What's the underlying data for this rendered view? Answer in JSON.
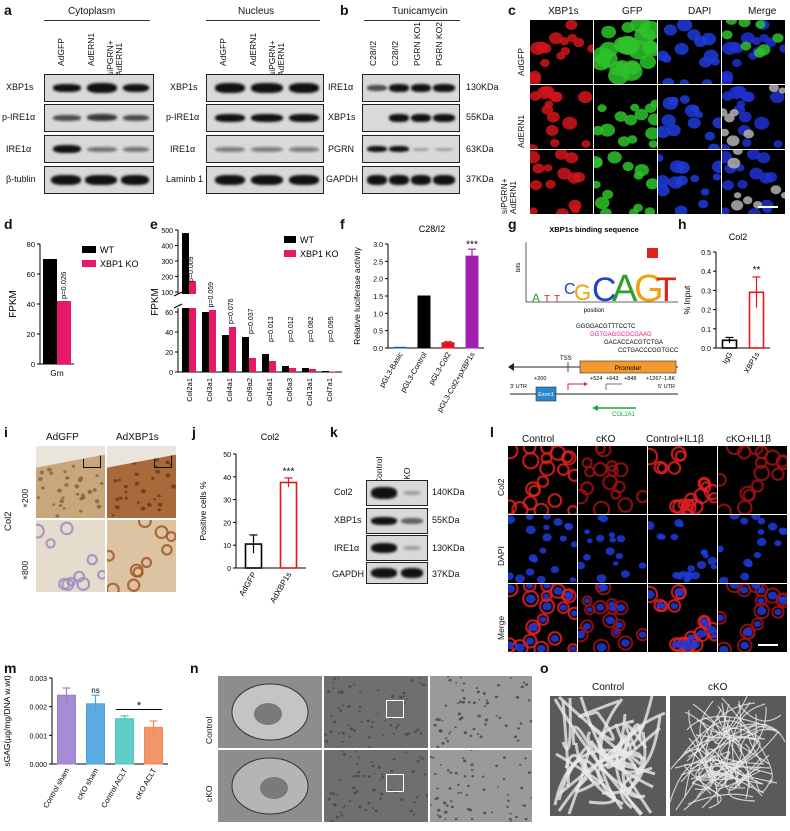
{
  "panels": {
    "a": {
      "letter": "a",
      "cytoplasm_title": "Cytoplasm",
      "nucleus_title": "Nucleus",
      "columns": [
        "AdGFP",
        "AdERN1",
        "siPGRN+ AdERN1"
      ],
      "cyto_rows": [
        "XBP1s",
        "p-IRE1α",
        "IRE1α",
        "β-tublin"
      ],
      "nuc_rows": [
        "XBP1s",
        "p-IRE1α",
        "IRE1α",
        "Laminb 1"
      ]
    },
    "b": {
      "letter": "b",
      "title": "Tunicamycin",
      "columns": [
        "C28/I2",
        "C28/I2",
        "PGRN KO1",
        "PGRN KO2"
      ],
      "rows": [
        "IRE1α",
        "XBP1s",
        "PGRN",
        "GAPDH"
      ],
      "sizes": [
        "130KDa",
        "55KDa",
        "63KDa",
        "37KDa"
      ]
    },
    "c": {
      "letter": "c",
      "channels": [
        "XBP1s",
        "GFP",
        "DAPI",
        "Merge"
      ],
      "rows": [
        "AdGFP",
        "AdERN1",
        "siPGRN+ AdERN1"
      ],
      "colors": {
        "red": "#d0151a",
        "green": "#2ec22a",
        "blue": "#1f3bd8"
      }
    },
    "d": {
      "letter": "d",
      "ylabel": "FPKM",
      "xcat": "Grn",
      "pval": "p=0.026",
      "legend": [
        "WT",
        "XBP1 KO"
      ]
    },
    "e": {
      "letter": "e",
      "ylabel": "FPKM",
      "legend": [
        "WT",
        "XBP1 KO"
      ],
      "categories": [
        "Col2a1",
        "Col3a1",
        "Col4a1",
        "Col9a2",
        "Col16a1",
        "Col5a3",
        "Col13a1",
        "Col7a1"
      ],
      "pvals": [
        "p=0.009",
        "p=0.059",
        "p=0.076",
        "p=0.037",
        "p=0.013",
        "p=0.012",
        "p=0.082",
        "p=0.095"
      ]
    },
    "f": {
      "letter": "f",
      "title": "C28/I2",
      "ylabel": "Relative luciferase activity",
      "categories": [
        "pGL3-Basic",
        "pGL3-Control",
        "pGL3-Col2",
        "pGL3-Col2+pXBP1s"
      ],
      "sig": "***"
    },
    "g": {
      "letter": "g",
      "title": "XBP1s binding sequence",
      "bits": "bits",
      "position": "position",
      "seq1": "GGGGACGTTTCCTC",
      "seq2": "GGTGAGGCGCGAAG",
      "seq3": "GACACCACGTCTGA",
      "seq4": "CCTGACCCGGTGCC",
      "tss": "TSS",
      "promoter": "Promoter",
      "pos": [
        "+200",
        "+524",
        "+643",
        "+848",
        "+1267",
        "-1.8K"
      ],
      "utr3": "3' UTR",
      "utr5": "5' UTR",
      "exon": "Exon1",
      "gene": "COL2A1"
    },
    "h": {
      "letter": "h",
      "title": "Col2",
      "ylabel": "% Input",
      "categories": [
        "IgG",
        "XBP1s"
      ],
      "sig": "**"
    },
    "i": {
      "letter": "i",
      "columns": [
        "AdGFP",
        "AdXBP1s"
      ],
      "rows": [
        "×200",
        "×800"
      ],
      "side": "Col2"
    },
    "j": {
      "letter": "j",
      "title": "Col2",
      "ylabel": "Positive cells %",
      "categories": [
        "AdGFP",
        "AdXBP1s"
      ],
      "sig": "***"
    },
    "k": {
      "letter": "k",
      "columns": [
        "Control",
        "cKO"
      ],
      "rows": [
        "Col2",
        "XBP1s",
        "IRE1α",
        "GAPDH"
      ],
      "sizes": [
        "140KDa",
        "55KDa",
        "130KDa",
        "37KDa"
      ]
    },
    "l": {
      "letter": "l",
      "columns": [
        "Control",
        "cKO",
        "Control+IL1β",
        "cKO+IL1β"
      ],
      "rows": [
        "Col2",
        "DAPI",
        "Merge"
      ]
    },
    "m": {
      "letter": "m",
      "ylabel": "sGAG(μg/mg/DNA w.wt)",
      "categories": [
        "Control sham",
        "cKO sham",
        "Control ACLT",
        "cKO ACLT"
      ],
      "ns": "ns",
      "sig": "*"
    },
    "n": {
      "letter": "n",
      "rows": [
        "Control",
        "cKO"
      ]
    },
    "o": {
      "letter": "o",
      "columns": [
        "Control",
        "cKO"
      ]
    }
  },
  "chart_data": [
    {
      "type": "bar",
      "panel": "d",
      "categories": [
        "Grn"
      ],
      "series": [
        {
          "name": "WT",
          "values": [
            70
          ],
          "color": "#000000"
        },
        {
          "name": "XBP1 KO",
          "values": [
            42
          ],
          "color": "#e8176a"
        }
      ],
      "ylabel": "FPKM",
      "ylim": [
        0,
        80
      ],
      "yticks": [
        0,
        20,
        40,
        60,
        80
      ]
    },
    {
      "type": "bar",
      "panel": "e",
      "categories": [
        "Col2a1",
        "Col3a1",
        "Col4a1",
        "Col9a2",
        "Col16a1",
        "Col5a3",
        "Col13a1",
        "Col7a1"
      ],
      "series": [
        {
          "name": "WT",
          "values": [
            480,
            60,
            37,
            35,
            18,
            6,
            4,
            1
          ],
          "color": "#000000"
        },
        {
          "name": "XBP1 KO",
          "values": [
            170,
            90,
            45,
            14,
            11,
            4,
            3,
            0.5
          ],
          "color": "#e8176a"
        }
      ],
      "ylabel": "FPKM",
      "yticks_low": [
        0,
        20,
        40,
        60
      ],
      "yticks_high": [
        100,
        200,
        300,
        400,
        500
      ]
    },
    {
      "type": "bar",
      "panel": "f",
      "categories": [
        "pGL3-Basic",
        "pGL3-Control",
        "pGL3-Col2",
        "pGL3-Col2+pXBP1s"
      ],
      "values": [
        0.02,
        1.5,
        0.15,
        2.65
      ],
      "errors": [
        0,
        0,
        0.03,
        0.2
      ],
      "colors": [
        "#1a56c8",
        "#000000",
        "#e21818",
        "#a020b0"
      ],
      "ylabel": "Relative luciferase activity",
      "ylim": [
        0,
        3.0
      ],
      "yticks": [
        0.0,
        0.5,
        1.0,
        1.5,
        2.0,
        2.5,
        3.0
      ]
    },
    {
      "type": "bar",
      "panel": "h",
      "categories": [
        "IgG",
        "XBP1s"
      ],
      "values": [
        0.04,
        0.29
      ],
      "errors": [
        0.015,
        0.08
      ],
      "colors": [
        "#000000",
        "#e21818"
      ],
      "ylabel": "% Input",
      "ylim": [
        0,
        0.5
      ],
      "yticks": [
        0.0,
        0.1,
        0.2,
        0.3,
        0.4,
        0.5
      ]
    },
    {
      "type": "bar",
      "panel": "j",
      "categories": [
        "AdGFP",
        "AdXBP1s"
      ],
      "values": [
        10.5,
        37.5
      ],
      "errors": [
        4,
        2
      ],
      "colors": [
        "#000000",
        "#e21818"
      ],
      "ylabel": "Positive cells %",
      "ylim": [
        0,
        50
      ],
      "yticks": [
        0,
        10,
        20,
        30,
        40,
        50
      ]
    },
    {
      "type": "bar",
      "panel": "m",
      "categories": [
        "Control sham",
        "cKO sham",
        "Control ACLT",
        "cKO ACLT"
      ],
      "values": [
        0.0024,
        0.0021,
        0.00158,
        0.00128
      ],
      "errors": [
        0.00025,
        0.0003,
        0.0001,
        0.00022
      ],
      "colors": [
        "#9b7fcf",
        "#4aa3e0",
        "#4fc6c2",
        "#f08a5a"
      ],
      "ylabel": "sGAG(μg/mg/DNA w.wt)",
      "ylim": [
        0,
        0.003
      ],
      "yticks": [
        0.0,
        0.001,
        0.002,
        0.003
      ]
    }
  ]
}
